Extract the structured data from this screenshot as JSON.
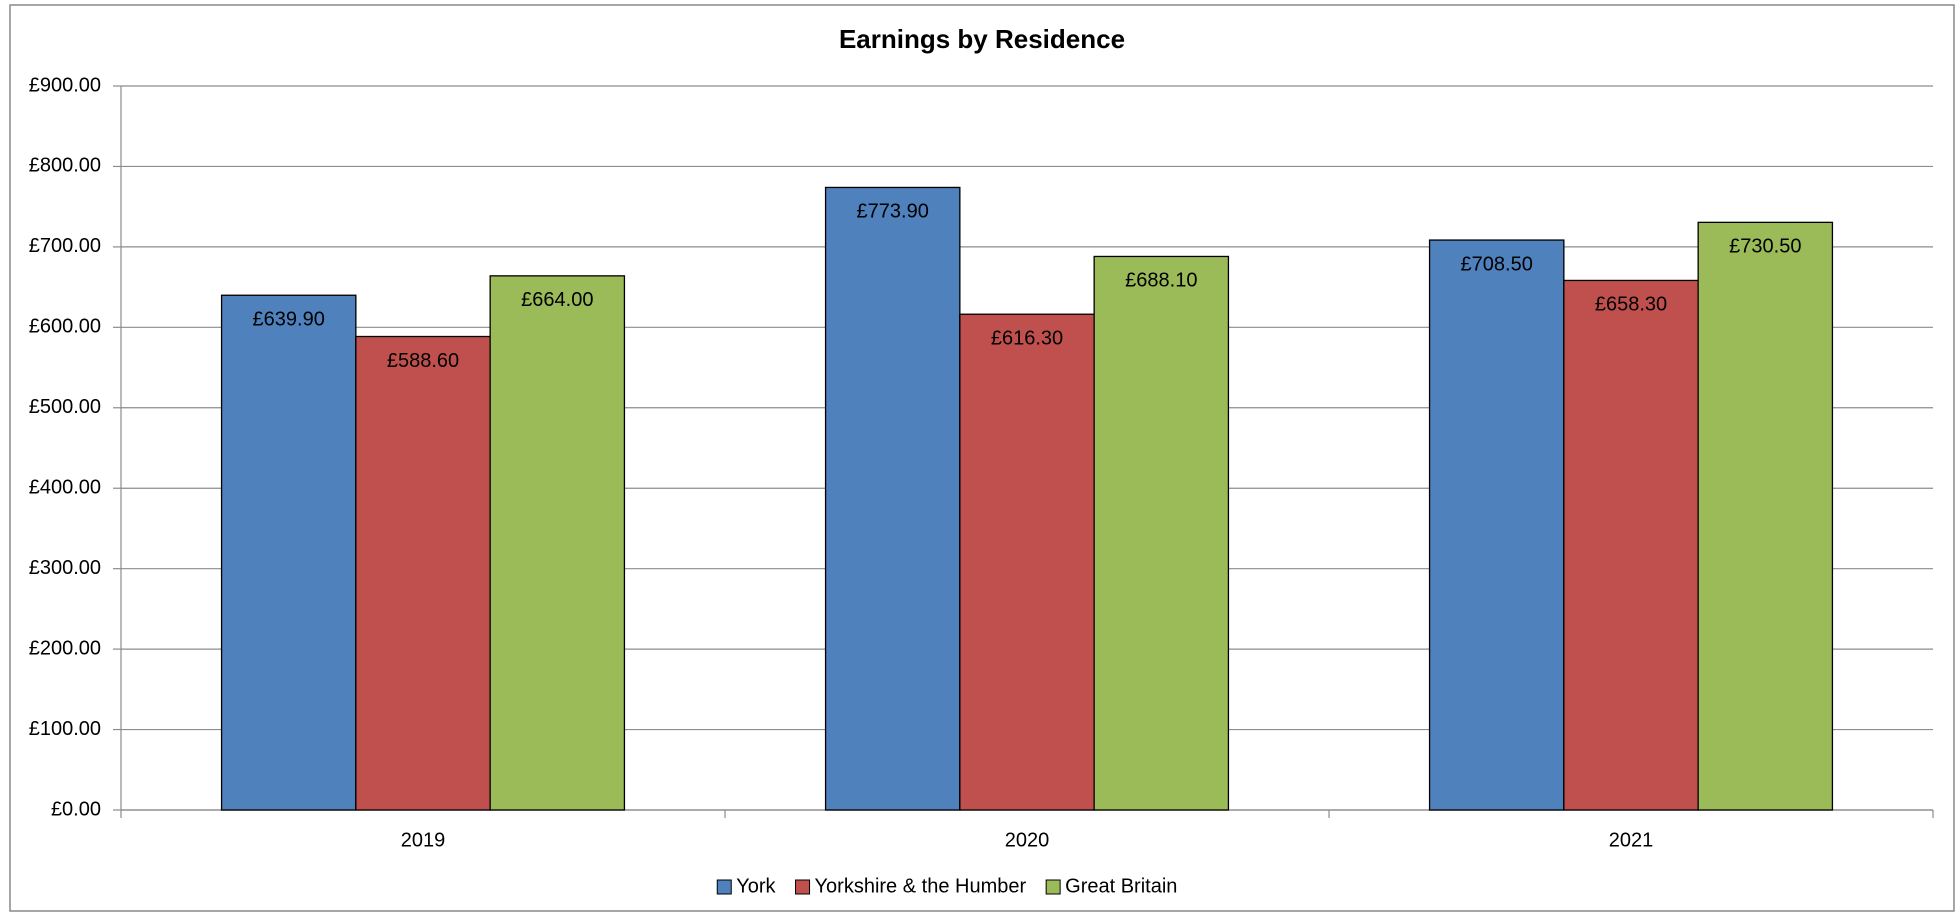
{
  "chart_data": {
    "type": "bar",
    "title": "Earnings by Residence",
    "categories": [
      "2019",
      "2020",
      "2021"
    ],
    "series": [
      {
        "name": "York",
        "color": "#4f81bd",
        "values": [
          639.9,
          773.9,
          708.5
        ],
        "value_labels": [
          "£639.90",
          "£773.90",
          "£708.50"
        ]
      },
      {
        "name": "Yorkshire & the Humber",
        "color": "#c0504d",
        "values": [
          588.6,
          616.3,
          658.3
        ],
        "value_labels": [
          "£588.60",
          "£616.30",
          "£658.30"
        ]
      },
      {
        "name": "Great Britain",
        "color": "#9bbb59",
        "values": [
          664.0,
          688.1,
          730.5
        ],
        "value_labels": [
          "£664.00",
          "£688.10",
          "£730.50"
        ]
      }
    ],
    "ylim": [
      0,
      900
    ],
    "yticks": [
      {
        "value": 0,
        "label": "£0.00"
      },
      {
        "value": 100,
        "label": "£100.00"
      },
      {
        "value": 200,
        "label": "£200.00"
      },
      {
        "value": 300,
        "label": "£300.00"
      },
      {
        "value": 400,
        "label": "£400.00"
      },
      {
        "value": 500,
        "label": "£500.00"
      },
      {
        "value": 600,
        "label": "£600.00"
      },
      {
        "value": 700,
        "label": "£700.00"
      },
      {
        "value": 800,
        "label": "£800.00"
      },
      {
        "value": 900,
        "label": "£900.00"
      }
    ],
    "grid": true,
    "legend": "bottom"
  }
}
